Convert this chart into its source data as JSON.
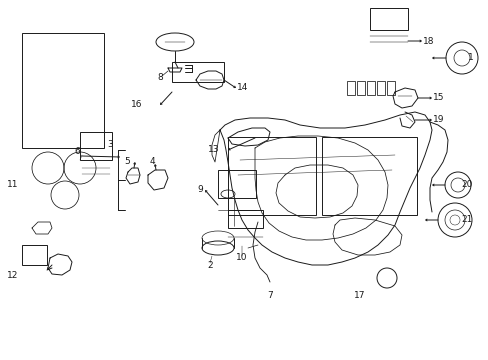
{
  "bg_color": "#ffffff",
  "line_color": "#1a1a1a",
  "lw": 0.7,
  "fig_w": 4.89,
  "fig_h": 3.6,
  "dpi": 100
}
